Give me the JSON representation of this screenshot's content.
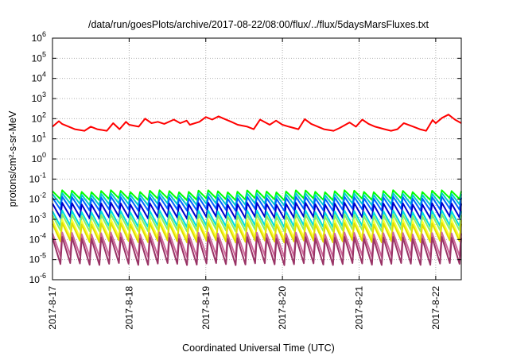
{
  "chart_data": {
    "type": "line",
    "title": "/data/run/goesPlots/archive/2017-08-22/08:00/flux/../flux/5daysMarsFluxes.txt",
    "xlabel": "Coordinated Universal Time (UTC)",
    "ylabel": "protons/cm²-s-sr-MeV",
    "yscale": "log",
    "ylim": [
      1e-06,
      1000000.0
    ],
    "xlim": [
      "2017-08-17T00:00",
      "2017-08-22T08:00"
    ],
    "grid": true,
    "legend": "none",
    "x_ticks": [
      "2017-8-17",
      "2017-8-18",
      "2017-8-19",
      "2017-8-20",
      "2017-8-21",
      "2017-8-22"
    ],
    "y_ticks": [
      {
        "value": 1000000.0,
        "base": "10",
        "exp": "6"
      },
      {
        "value": 100000.0,
        "base": "10",
        "exp": "5"
      },
      {
        "value": 10000.0,
        "base": "10",
        "exp": "4"
      },
      {
        "value": 1000.0,
        "base": "10",
        "exp": "3"
      },
      {
        "value": 100.0,
        "base": "10",
        "exp": "2"
      },
      {
        "value": 10.0,
        "base": "10",
        "exp": "1"
      },
      {
        "value": 1.0,
        "base": "10",
        "exp": "0"
      },
      {
        "value": 0.1,
        "base": "10",
        "exp": "-1"
      },
      {
        "value": 0.01,
        "base": "10",
        "exp": "-2"
      },
      {
        "value": 0.001,
        "base": "10",
        "exp": "-3"
      },
      {
        "value": 0.0001,
        "base": "10",
        "exp": "-4"
      },
      {
        "value": 1e-05,
        "base": "10",
        "exp": "-5"
      },
      {
        "value": 1e-06,
        "base": "10",
        "exp": "-6"
      }
    ],
    "series": [
      {
        "color": "#ff0000",
        "x": [
          "2017-08-17T00:00",
          "2017-08-17T02:00",
          "2017-08-17T03:00",
          "2017-08-17T06:00",
          "2017-08-17T07:00",
          "2017-08-17T10:00",
          "2017-08-17T12:00",
          "2017-08-17T14:00",
          "2017-08-17T17:00",
          "2017-08-17T19:00",
          "2017-08-17T21:00",
          "2017-08-17T23:00",
          "2017-08-18T00:00",
          "2017-08-18T03:00",
          "2017-08-18T05:00",
          "2017-08-18T07:00",
          "2017-08-18T09:00",
          "2017-08-18T11:00",
          "2017-08-18T14:00",
          "2017-08-18T16:00",
          "2017-08-18T18:00",
          "2017-08-18T19:00",
          "2017-08-18T22:00",
          "2017-08-19T00:00",
          "2017-08-19T02:00",
          "2017-08-19T04:00",
          "2017-08-19T06:00",
          "2017-08-19T08:00",
          "2017-08-19T10:00",
          "2017-08-19T13:00",
          "2017-08-19T15:00",
          "2017-08-19T17:00",
          "2017-08-19T20:00",
          "2017-08-19T22:00",
          "2017-08-20T00:00",
          "2017-08-20T02:00",
          "2017-08-20T05:00",
          "2017-08-20T07:00",
          "2017-08-20T09:00",
          "2017-08-20T12:00",
          "2017-08-20T13:00",
          "2017-08-20T16:00",
          "2017-08-20T18:00",
          "2017-08-20T21:00",
          "2017-08-20T23:00",
          "2017-08-21T01:00",
          "2017-08-21T03:00",
          "2017-08-21T05:00",
          "2017-08-21T08:00",
          "2017-08-21T10:00",
          "2017-08-21T12:00",
          "2017-08-21T14:00",
          "2017-08-21T17:00",
          "2017-08-21T19:00",
          "2017-08-21T21:00",
          "2017-08-21T23:00",
          "2017-08-22T00:00",
          "2017-08-22T02:00",
          "2017-08-22T04:00",
          "2017-08-22T06:00",
          "2017-08-22T08:00"
        ],
        "y": [
          40,
          75,
          55,
          35,
          30,
          25,
          40,
          30,
          25,
          60,
          30,
          70,
          50,
          40,
          100,
          60,
          70,
          55,
          90,
          60,
          80,
          50,
          70,
          120,
          90,
          130,
          95,
          70,
          50,
          40,
          30,
          90,
          50,
          80,
          50,
          40,
          30,
          95,
          55,
          35,
          30,
          25,
          35,
          65,
          40,
          90,
          55,
          40,
          30,
          25,
          30,
          60,
          40,
          30,
          25,
          85,
          60,
          110,
          160,
          90,
          60
        ]
      },
      {
        "color": "#00ff00",
        "amp": [
          0.025,
          0.01
        ]
      },
      {
        "color": "#00cccc",
        "amp": [
          0.018,
          0.0055
        ]
      },
      {
        "color": "#0066ff",
        "amp": [
          0.012,
          0.003
        ]
      },
      {
        "color": "#0000cc",
        "amp": [
          0.006,
          0.0012
        ]
      },
      {
        "color": "#00dddd",
        "amp": [
          0.0025,
          0.00045
        ]
      },
      {
        "color": "#88ee66",
        "amp": [
          0.0016,
          0.00028
        ]
      },
      {
        "color": "#ffff33",
        "amp": [
          0.0009,
          0.00012
        ]
      },
      {
        "color": "#dddd00",
        "amp": [
          0.0006,
          8e-05
        ]
      },
      {
        "color": "#cc6699",
        "amp": [
          0.0002,
          1.5e-05
        ]
      },
      {
        "color": "#993366",
        "amp": [
          0.00012,
          6e-06
        ]
      }
    ]
  }
}
